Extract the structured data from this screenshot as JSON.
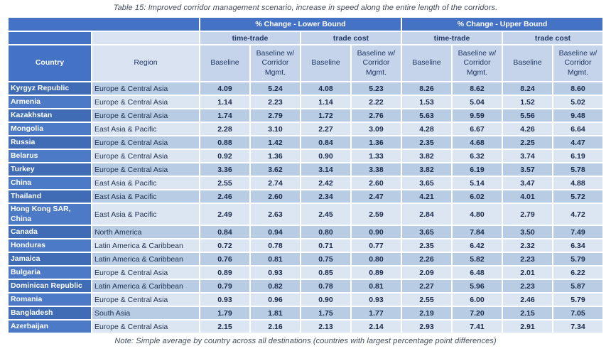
{
  "caption": "Table 15: Improved corridor management scenario, increase in speed along the entire length of the corridors.",
  "note": "Note: Simple average by country across all destinations (countries with largest percentage point differences)",
  "colors": {
    "header_blue": "#4472c4",
    "country_cell_dark": "#3f6cb5",
    "country_cell_light": "#4d7ac6",
    "band_medium": "#b8cce4",
    "band_light": "#dce6f2",
    "header_light_blue": "#c6d4eb",
    "region_header": "#dae3f2",
    "dark_text": "#1f3864"
  },
  "table": {
    "col_groups": [
      "% Change - Lower Bound",
      "% Change - Upper Bound"
    ],
    "sub_groups": [
      "time-trade",
      "trade cost",
      "time-trade",
      "trade cost"
    ],
    "headers": {
      "country": "Country",
      "region": "Region",
      "baseline": "Baseline",
      "baseline_cm": "Baseline w/ Corridor Mgmt."
    },
    "rows": [
      {
        "country": "Kyrgyz Republic",
        "region": "Europe & Central Asia",
        "values": [
          "4.09",
          "5.24",
          "4.08",
          "5.23",
          "8.26",
          "8.62",
          "8.24",
          "8.60"
        ]
      },
      {
        "country": "Armenia",
        "region": "Europe & Central Asia",
        "values": [
          "1.14",
          "2.23",
          "1.14",
          "2.22",
          "1.53",
          "5.04",
          "1.52",
          "5.02"
        ]
      },
      {
        "country": "Kazakhstan",
        "region": "Europe & Central Asia",
        "values": [
          "1.74",
          "2.79",
          "1.72",
          "2.76",
          "5.63",
          "9.59",
          "5.56",
          "9.48"
        ]
      },
      {
        "country": "Mongolia",
        "region": "East Asia & Pacific",
        "values": [
          "2.28",
          "3.10",
          "2.27",
          "3.09",
          "4.28",
          "6.67",
          "4.26",
          "6.64"
        ]
      },
      {
        "country": "Russia",
        "region": "Europe & Central Asia",
        "values": [
          "0.88",
          "1.42",
          "0.84",
          "1.36",
          "2.35",
          "4.68",
          "2.25",
          "4.47"
        ]
      },
      {
        "country": "Belarus",
        "region": "Europe & Central Asia",
        "values": [
          "0.92",
          "1.36",
          "0.90",
          "1.33",
          "3.82",
          "6.32",
          "3.74",
          "6.19"
        ]
      },
      {
        "country": "Turkey",
        "region": "Europe & Central Asia",
        "values": [
          "3.36",
          "3.62",
          "3.14",
          "3.38",
          "3.82",
          "6.19",
          "3.57",
          "5.78"
        ]
      },
      {
        "country": "China",
        "region": "East Asia & Pacific",
        "values": [
          "2.55",
          "2.74",
          "2.42",
          "2.60",
          "3.65",
          "5.14",
          "3.47",
          "4.88"
        ]
      },
      {
        "country": "Thailand",
        "region": "East Asia & Pacific",
        "values": [
          "2.46",
          "2.60",
          "2.34",
          "2.47",
          "4.21",
          "6.02",
          "4.01",
          "5.72"
        ]
      },
      {
        "country": "Hong Kong SAR, China",
        "region": "East Asia & Pacific",
        "values": [
          "2.49",
          "2.63",
          "2.45",
          "2.59",
          "2.84",
          "4.80",
          "2.79",
          "4.72"
        ]
      },
      {
        "country": "Canada",
        "region": "North America",
        "values": [
          "0.84",
          "0.94",
          "0.80",
          "0.90",
          "3.65",
          "7.84",
          "3.50",
          "7.49"
        ]
      },
      {
        "country": "Honduras",
        "region": "Latin America & Caribbean",
        "values": [
          "0.72",
          "0.78",
          "0.71",
          "0.77",
          "2.35",
          "6.42",
          "2.32",
          "6.34"
        ]
      },
      {
        "country": "Jamaica",
        "region": "Latin America & Caribbean",
        "values": [
          "0.76",
          "0.81",
          "0.75",
          "0.80",
          "2.26",
          "5.82",
          "2.23",
          "5.79"
        ]
      },
      {
        "country": "Bulgaria",
        "region": "Europe & Central Asia",
        "values": [
          "0.89",
          "0.93",
          "0.85",
          "0.89",
          "2.09",
          "6.48",
          "2.01",
          "6.22"
        ]
      },
      {
        "country": "Dominican Republic",
        "region": "Latin America & Caribbean",
        "values": [
          "0.79",
          "0.82",
          "0.78",
          "0.81",
          "2.27",
          "5.96",
          "2.23",
          "5.87"
        ]
      },
      {
        "country": "Romania",
        "region": "Europe & Central Asia",
        "values": [
          "0.93",
          "0.96",
          "0.90",
          "0.93",
          "2.55",
          "6.00",
          "2.46",
          "5.79"
        ]
      },
      {
        "country": "Bangladesh",
        "region": "South Asia",
        "values": [
          "1.79",
          "1.81",
          "1.75",
          "1.77",
          "2.19",
          "7.20",
          "2.15",
          "7.05"
        ]
      },
      {
        "country": "Azerbaijan",
        "region": "Europe & Central Asia",
        "values": [
          "2.15",
          "2.16",
          "2.13",
          "2.14",
          "2.93",
          "7.41",
          "2.91",
          "7.34"
        ]
      }
    ]
  }
}
